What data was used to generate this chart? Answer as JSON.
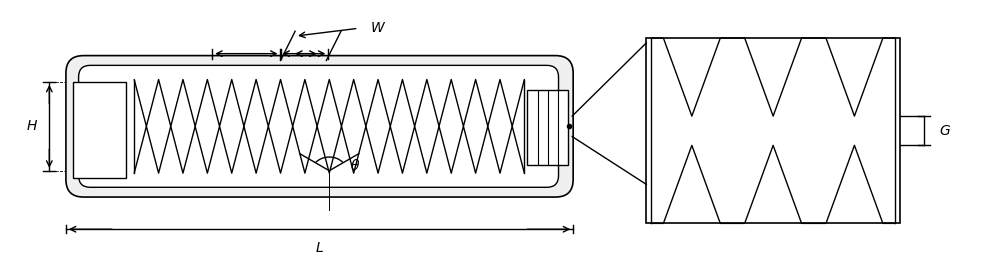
{
  "bg_color": "#ffffff",
  "line_color": "#000000",
  "line_color_light": "#555555",
  "fig_width": 10.0,
  "fig_height": 2.57,
  "dpi": 100,
  "labels": {
    "H": "H",
    "W": "W",
    "L": "L",
    "theta": "θ",
    "G": "G"
  }
}
